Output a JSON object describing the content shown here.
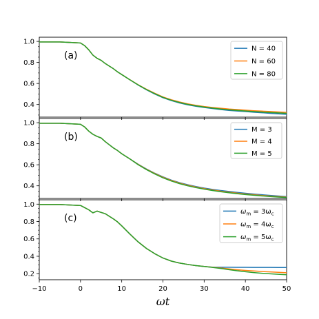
{
  "chart_data": {
    "type": "line",
    "xlabel": "ωt",
    "xlim": [
      -10,
      50
    ],
    "x_ticks": [
      -10,
      0,
      10,
      20,
      30,
      40,
      50
    ],
    "shared_x_axis": true,
    "panels": [
      {
        "tag": "(a)",
        "ylim": [
          0.28,
          1.04
        ],
        "y_ticks": [
          0.4,
          0.6,
          0.8,
          1.0
        ],
        "y_tick_labels": [
          "0.4",
          "0.6",
          "0.8",
          "1.0"
        ],
        "legend_position": "upper right",
        "x": [
          -10,
          -5,
          0,
          1,
          2,
          3,
          4,
          5,
          6,
          7,
          8,
          9,
          10,
          12,
          14,
          16,
          18,
          20,
          22,
          24,
          26,
          28,
          30,
          32,
          34,
          36,
          38,
          40,
          42,
          44,
          46,
          48,
          50
        ],
        "series": [
          {
            "name": "N = 40",
            "color": "#1f77b4",
            "values": [
              0.995,
              0.995,
              0.985,
              0.96,
              0.92,
              0.87,
              0.84,
              0.82,
              0.79,
              0.765,
              0.74,
              0.71,
              0.685,
              0.635,
              0.585,
              0.54,
              0.5,
              0.465,
              0.438,
              0.415,
              0.397,
              0.383,
              0.372,
              0.362,
              0.352,
              0.344,
              0.338,
              0.333,
              0.327,
              0.322,
              0.316,
              0.311,
              0.307
            ]
          },
          {
            "name": "N = 60",
            "color": "#ff7f0e",
            "values": [
              0.995,
              0.995,
              0.985,
              0.96,
              0.92,
              0.87,
              0.84,
              0.82,
              0.79,
              0.765,
              0.74,
              0.71,
              0.685,
              0.635,
              0.588,
              0.545,
              0.507,
              0.472,
              0.446,
              0.424,
              0.406,
              0.392,
              0.381,
              0.372,
              0.364,
              0.357,
              0.352,
              0.346,
              0.341,
              0.337,
              0.333,
              0.329,
              0.325
            ]
          },
          {
            "name": "N = 80",
            "color": "#2ca02c",
            "values": [
              0.995,
              0.995,
              0.985,
              0.96,
              0.92,
              0.87,
              0.84,
              0.82,
              0.79,
              0.765,
              0.74,
              0.71,
              0.685,
              0.635,
              0.586,
              0.542,
              0.503,
              0.468,
              0.441,
              0.419,
              0.401,
              0.387,
              0.376,
              0.366,
              0.357,
              0.35,
              0.344,
              0.338,
              0.333,
              0.328,
              0.324,
              0.32,
              0.316
            ]
          }
        ]
      },
      {
        "tag": "(b)",
        "ylim": [
          0.28,
          1.04
        ],
        "y_ticks": [
          0.4,
          0.6,
          0.8,
          1.0
        ],
        "y_tick_labels": [
          "0.4",
          "0.6",
          "0.8",
          "1.0"
        ],
        "legend_position": "upper right",
        "x": [
          -10,
          -5,
          0,
          1,
          2,
          3,
          4,
          5,
          6,
          7,
          8,
          9,
          10,
          12,
          14,
          16,
          18,
          20,
          22,
          24,
          26,
          28,
          30,
          32,
          34,
          36,
          38,
          40,
          42,
          44,
          46,
          48,
          50
        ],
        "series": [
          {
            "name": "M = 3",
            "color": "#1f77b4",
            "values": [
              0.995,
              0.995,
              0.985,
              0.96,
              0.92,
              0.89,
              0.87,
              0.855,
              0.82,
              0.79,
              0.76,
              0.735,
              0.705,
              0.655,
              0.605,
              0.56,
              0.52,
              0.485,
              0.455,
              0.43,
              0.41,
              0.393,
              0.378,
              0.366,
              0.355,
              0.346,
              0.337,
              0.329,
              0.322,
              0.315,
              0.309,
              0.303,
              0.297
            ]
          },
          {
            "name": "M = 4",
            "color": "#ff7f0e",
            "values": [
              0.995,
              0.995,
              0.985,
              0.96,
              0.92,
              0.89,
              0.87,
              0.855,
              0.82,
              0.79,
              0.76,
              0.735,
              0.705,
              0.655,
              0.603,
              0.557,
              0.517,
              0.481,
              0.451,
              0.426,
              0.405,
              0.388,
              0.373,
              0.36,
              0.349,
              0.339,
              0.33,
              0.322,
              0.315,
              0.308,
              0.302,
              0.297,
              0.292
            ]
          },
          {
            "name": "M = 5",
            "color": "#2ca02c",
            "values": [
              0.995,
              0.995,
              0.985,
              0.96,
              0.92,
              0.89,
              0.87,
              0.855,
              0.82,
              0.79,
              0.76,
              0.735,
              0.705,
              0.655,
              0.6,
              0.554,
              0.513,
              0.476,
              0.446,
              0.421,
              0.4,
              0.383,
              0.368,
              0.355,
              0.344,
              0.334,
              0.325,
              0.317,
              0.31,
              0.304,
              0.298,
              0.293,
              0.289
            ]
          }
        ]
      },
      {
        "tag": "(c)",
        "ylim": [
          0.13,
          1.05
        ],
        "y_ticks": [
          0.2,
          0.4,
          0.6,
          0.8,
          1.0
        ],
        "y_tick_labels": [
          "0.2",
          "0.4",
          "0.6",
          "0.8",
          "1.0"
        ],
        "legend_position": "upper right",
        "x": [
          -10,
          -5,
          0,
          1,
          2,
          3,
          4,
          5,
          6,
          7,
          8,
          9,
          10,
          12,
          14,
          16,
          18,
          20,
          22,
          24,
          26,
          28,
          30,
          32,
          34,
          36,
          38,
          40,
          42,
          44,
          46,
          48,
          50
        ],
        "series": [
          {
            "name": "ωm = 3ωc",
            "label_parts": [
              "ω",
              "m",
              " = 3ω",
              "c"
            ],
            "color": "#1f77b4",
            "values": [
              0.995,
              0.995,
              0.985,
              0.96,
              0.935,
              0.9,
              0.92,
              0.905,
              0.89,
              0.86,
              0.83,
              0.795,
              0.75,
              0.655,
              0.565,
              0.49,
              0.43,
              0.38,
              0.345,
              0.322,
              0.306,
              0.293,
              0.283,
              0.275,
              0.274,
              0.274,
              0.273,
              0.273,
              0.272,
              0.272,
              0.272,
              0.271,
              0.271
            ]
          },
          {
            "name": "ωm = 4ωc",
            "label_parts": [
              "ω",
              "m",
              " = 4ω",
              "c"
            ],
            "color": "#ff7f0e",
            "values": [
              0.995,
              0.995,
              0.985,
              0.96,
              0.935,
              0.9,
              0.92,
              0.905,
              0.89,
              0.86,
              0.83,
              0.795,
              0.75,
              0.655,
              0.565,
              0.49,
              0.43,
              0.38,
              0.345,
              0.322,
              0.306,
              0.293,
              0.283,
              0.274,
              0.265,
              0.255,
              0.245,
              0.237,
              0.231,
              0.225,
              0.22,
              0.215,
              0.21
            ]
          },
          {
            "name": "ωm = 5ωc",
            "label_parts": [
              "ω",
              "m",
              " = 5ω",
              "c"
            ],
            "color": "#2ca02c",
            "values": [
              0.995,
              0.995,
              0.985,
              0.96,
              0.935,
              0.9,
              0.92,
              0.905,
              0.89,
              0.86,
              0.83,
              0.795,
              0.75,
              0.655,
              0.565,
              0.49,
              0.43,
              0.38,
              0.345,
              0.322,
              0.306,
              0.293,
              0.283,
              0.272,
              0.26,
              0.246,
              0.233,
              0.222,
              0.212,
              0.204,
              0.198,
              0.192,
              0.188
            ]
          }
        ]
      }
    ]
  }
}
